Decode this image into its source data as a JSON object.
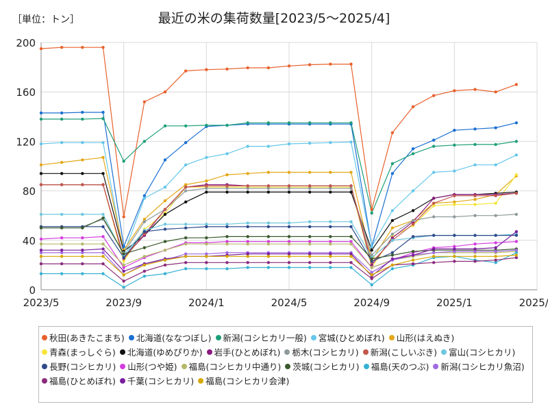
{
  "chart_data": {
    "type": "line",
    "title": "最近の米の集荷数量[2023/5～2025/4]",
    "unit_label": "［単位：トン］",
    "xlabel": "",
    "ylabel": "",
    "ylim": [
      0,
      200
    ],
    "yticks": [
      0,
      40,
      80,
      120,
      160,
      200
    ],
    "xlim": [
      "2023-05",
      "2025-05"
    ],
    "xtick_labels": [
      "2023/5",
      "2023/9",
      "2024/1",
      "2024/5",
      "2024/9",
      "2025/1",
      "2025/5"
    ],
    "x": [
      "2023-05",
      "2023-06",
      "2023-07",
      "2023-08",
      "2023-09",
      "2023-10",
      "2023-11",
      "2023-12",
      "2024-01",
      "2024-02",
      "2024-03",
      "2024-04",
      "2024-05",
      "2024-06",
      "2024-07",
      "2024-08",
      "2024-09",
      "2024-10",
      "2024-11",
      "2024-12",
      "2025-01",
      "2025-02",
      "2025-03",
      "2025-04"
    ],
    "grid": true,
    "legend_position": "bottom",
    "series": [
      {
        "name": "秋田(あきたこまち)",
        "color": "#e8612c",
        "values": [
          195,
          196,
          196,
          196,
          59,
          152,
          160,
          177,
          178,
          178.5,
          179.5,
          179.5,
          181,
          182,
          182.5,
          182.5,
          65,
          127,
          148,
          157,
          161,
          162,
          160,
          166
        ]
      },
      {
        "name": "北海道(ななつぼし)",
        "color": "#1a6fd1",
        "values": [
          143,
          143,
          143.5,
          143.5,
          35,
          76,
          105,
          119,
          132,
          133,
          134,
          134,
          134,
          134,
          134,
          134,
          35,
          94,
          114,
          121,
          129,
          130,
          131,
          135
        ]
      },
      {
        "name": "新潟(コシヒカリ一般)",
        "color": "#1c9e78",
        "values": [
          138,
          138,
          138,
          138.5,
          104,
          120,
          132.5,
          132.5,
          133,
          133,
          135,
          135,
          135,
          135,
          135,
          135,
          62,
          102,
          110,
          116,
          117,
          117.5,
          117.5,
          120
        ]
      },
      {
        "name": "宮城(ひとめぼれ)",
        "color": "#66c7ea",
        "values": [
          118,
          119,
          119,
          119,
          29,
          74,
          83,
          101,
          107,
          110,
          116,
          116,
          118,
          118.5,
          119,
          119.5,
          35,
          64,
          80,
          95,
          96,
          101,
          101,
          109
        ]
      },
      {
        "name": "山形(はえぬき)",
        "color": "#e3a817",
        "values": [
          101,
          103,
          105,
          107,
          32,
          57,
          72,
          85,
          88,
          93,
          94,
          95,
          95,
          95,
          95,
          95,
          24,
          50,
          56,
          70,
          71,
          73,
          77,
          92
        ]
      },
      {
        "name": "青森(まっしぐら)",
        "color": "#f5e53a",
        "values": [
          85,
          85,
          85,
          85,
          23,
          49,
          62,
          83,
          83,
          83,
          83,
          83,
          83,
          83,
          83,
          83,
          18,
          43,
          52,
          68,
          69,
          69,
          70,
          93
        ]
      },
      {
        "name": "北海道(ゆめぴりか)",
        "color": "#111111",
        "values": [
          94,
          94,
          94,
          94,
          31,
          44,
          61,
          71,
          79,
          79,
          79,
          79,
          79,
          79,
          79,
          79,
          32,
          56,
          64,
          74,
          77,
          77,
          78,
          79
        ]
      },
      {
        "name": "岩手(ひとめぼれ)",
        "color": "#8b1a80",
        "values": [
          85,
          85,
          85,
          85,
          26,
          44,
          65,
          83,
          85,
          85,
          84,
          84,
          84,
          84,
          84,
          84,
          20,
          42,
          55,
          74,
          77,
          77,
          77,
          78
        ]
      },
      {
        "name": "栃木(コシヒカリ)",
        "color": "#8e9a9b",
        "values": [
          51,
          51,
          51,
          57,
          30,
          55,
          65,
          80,
          82,
          82,
          82,
          82,
          82,
          82,
          82,
          82,
          28,
          45,
          56,
          59,
          59,
          60,
          60,
          61
        ]
      },
      {
        "name": "新潟(こしいぶき)",
        "color": "#c1574c",
        "values": [
          85,
          85,
          85,
          85,
          25,
          45,
          65,
          83,
          84,
          84,
          84,
          84,
          84,
          84,
          84,
          84,
          22,
          40,
          53,
          70,
          76,
          76,
          76,
          78
        ]
      },
      {
        "name": "富山(コシヒカリ)",
        "color": "#6ec8dd",
        "values": [
          61,
          61,
          61,
          61,
          28,
          48,
          53,
          53,
          53,
          53,
          54,
          54,
          54,
          55,
          55,
          55,
          26,
          40,
          42,
          44,
          44,
          44,
          44,
          45
        ]
      },
      {
        "name": "長野(コシヒカリ)",
        "color": "#2e4a8b",
        "values": [
          51,
          51,
          51,
          51,
          26,
          47,
          49,
          50,
          51,
          51,
          51,
          51,
          51,
          51,
          51,
          51,
          23,
          30,
          43,
          44,
          44,
          44,
          44,
          44
        ]
      },
      {
        "name": "山形(つや姫)",
        "color": "#d43ce0",
        "values": [
          41,
          42,
          42,
          43,
          18,
          26,
          32,
          38,
          38,
          39,
          39,
          39,
          39,
          39,
          39,
          39,
          18,
          24,
          30,
          34,
          35,
          37,
          38,
          39
        ]
      },
      {
        "name": "福島(コシヒカリ中通り)",
        "color": "#b5b86a",
        "values": [
          37,
          37,
          37,
          37,
          20,
          27,
          32,
          37,
          37,
          37,
          37,
          37,
          37,
          37,
          37,
          37,
          18,
          24,
          27,
          30,
          30,
          30,
          30,
          31
        ]
      },
      {
        "name": "茨城(コシヒカリ)",
        "color": "#3a5a2c",
        "values": [
          50,
          50,
          50,
          58,
          29,
          34,
          39,
          42,
          42,
          43,
          43,
          43,
          43,
          43,
          43,
          43,
          25,
          28,
          31,
          32,
          32,
          32,
          32,
          33
        ]
      },
      {
        "name": "福島(天のつぶ)",
        "color": "#37b0d2",
        "values": [
          13,
          13,
          13,
          13,
          2,
          11,
          13,
          17,
          17,
          17,
          18,
          18,
          18,
          18,
          18,
          18,
          4,
          17,
          20,
          26,
          27,
          24,
          22,
          30
        ]
      },
      {
        "name": "新潟(コシヒカリ魚沼)",
        "color": "#a06ae0",
        "values": [
          30,
          30,
          30,
          30,
          12,
          21,
          24,
          29,
          29,
          30,
          30,
          30,
          30,
          30,
          30,
          30,
          14,
          24,
          28,
          30,
          31,
          31,
          31,
          32
        ]
      },
      {
        "name": "福島(ひとめぼれ)",
        "color": "#8b2a7a",
        "values": [
          21,
          21,
          21,
          21,
          7,
          15,
          20,
          22,
          22,
          22,
          22,
          22,
          22,
          22,
          22,
          22,
          9,
          20,
          21,
          22,
          23,
          23,
          24,
          26
        ]
      },
      {
        "name": "千葉(コシヒカリ)",
        "color": "#7b1e9e",
        "values": [
          32,
          32,
          32,
          33,
          15,
          21,
          25,
          27,
          27,
          28,
          29,
          29,
          29,
          29,
          29,
          29,
          11,
          25,
          28,
          33,
          33,
          33,
          34,
          47
        ]
      },
      {
        "name": "福島(コシヒカリ会津)",
        "color": "#d6a800",
        "values": [
          27,
          27,
          27,
          27,
          12,
          20,
          24,
          27,
          27,
          27,
          27,
          27,
          27,
          27,
          27,
          27,
          12,
          20,
          24,
          27,
          27,
          27,
          27,
          28
        ]
      }
    ]
  }
}
